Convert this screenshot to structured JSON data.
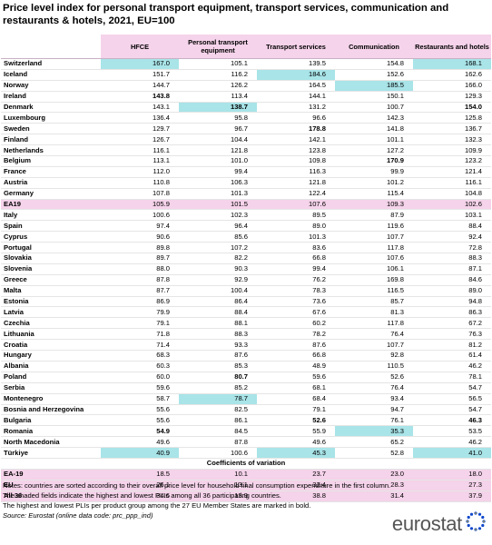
{
  "title": "Price level index for personal transport equipment, transport services, communication and restaurants & hotels, 2021, EU=100",
  "columns": [
    "HFCE",
    "Personal transport equipment",
    "Transport services",
    "Communication",
    "Restaurants and hotels"
  ],
  "highlight_color": "#a8e4e8",
  "section_color": "#f5d3ea",
  "rows": [
    {
      "country": "Switzerland",
      "values": [
        "167.0",
        "105.1",
        "139.5",
        "154.8",
        "168.1"
      ],
      "highlight": [
        0,
        4
      ],
      "bold": []
    },
    {
      "country": "Iceland",
      "values": [
        "151.7",
        "116.2",
        "184.6",
        "152.6",
        "162.6"
      ],
      "highlight": [
        2
      ],
      "bold": []
    },
    {
      "country": "Norway",
      "values": [
        "144.7",
        "126.2",
        "164.5",
        "185.5",
        "166.0"
      ],
      "highlight": [
        3
      ],
      "bold": []
    },
    {
      "country": "Ireland",
      "values": [
        "143.8",
        "113.4",
        "144.1",
        "150.1",
        "129.3"
      ],
      "highlight": [],
      "bold": [
        0
      ]
    },
    {
      "country": "Denmark",
      "values": [
        "143.1",
        "138.7",
        "131.2",
        "100.7",
        "154.0"
      ],
      "highlight": [
        1
      ],
      "bold": [
        1,
        4
      ]
    },
    {
      "country": "Luxembourg",
      "values": [
        "136.4",
        "95.8",
        "96.6",
        "142.3",
        "125.8"
      ],
      "highlight": [],
      "bold": []
    },
    {
      "country": "Sweden",
      "values": [
        "129.7",
        "96.7",
        "178.8",
        "141.8",
        "136.7"
      ],
      "highlight": [],
      "bold": [
        2
      ]
    },
    {
      "country": "Finland",
      "values": [
        "126.7",
        "104.4",
        "142.1",
        "101.1",
        "132.3"
      ],
      "highlight": [],
      "bold": []
    },
    {
      "country": "Netherlands",
      "values": [
        "116.1",
        "121.8",
        "123.8",
        "127.2",
        "109.9"
      ],
      "highlight": [],
      "bold": []
    },
    {
      "country": "Belgium",
      "values": [
        "113.1",
        "101.0",
        "109.8",
        "170.9",
        "123.2"
      ],
      "highlight": [],
      "bold": [
        3
      ]
    },
    {
      "country": "France",
      "values": [
        "112.0",
        "99.4",
        "116.3",
        "99.9",
        "121.4"
      ],
      "highlight": [],
      "bold": []
    },
    {
      "country": "Austria",
      "values": [
        "110.8",
        "106.3",
        "121.8",
        "101.2",
        "116.1"
      ],
      "highlight": [],
      "bold": []
    },
    {
      "country": "Germany",
      "values": [
        "107.8",
        "101.3",
        "122.4",
        "115.4",
        "104.8"
      ],
      "highlight": [],
      "bold": []
    },
    {
      "country": "EA19",
      "values": [
        "105.9",
        "101.5",
        "107.6",
        "109.3",
        "102.6"
      ],
      "highlight": [],
      "bold": [],
      "ea": true
    },
    {
      "country": "Italy",
      "values": [
        "100.6",
        "102.3",
        "89.5",
        "87.9",
        "103.1"
      ],
      "highlight": [],
      "bold": []
    },
    {
      "country": "Spain",
      "values": [
        "97.4",
        "96.4",
        "89.0",
        "119.6",
        "88.4"
      ],
      "highlight": [],
      "bold": []
    },
    {
      "country": "Cyprus",
      "values": [
        "90.6",
        "85.6",
        "101.3",
        "107.7",
        "92.4"
      ],
      "highlight": [],
      "bold": []
    },
    {
      "country": "Portugal",
      "values": [
        "89.8",
        "107.2",
        "83.6",
        "117.8",
        "72.8"
      ],
      "highlight": [],
      "bold": []
    },
    {
      "country": "Slovakia",
      "values": [
        "89.7",
        "82.2",
        "66.8",
        "107.6",
        "88.3"
      ],
      "highlight": [],
      "bold": []
    },
    {
      "country": "Slovenia",
      "values": [
        "88.0",
        "90.3",
        "99.4",
        "106.1",
        "87.1"
      ],
      "highlight": [],
      "bold": []
    },
    {
      "country": "Greece",
      "values": [
        "87.8",
        "92.9",
        "76.2",
        "169.8",
        "84.6"
      ],
      "highlight": [],
      "bold": []
    },
    {
      "country": "Malta",
      "values": [
        "87.7",
        "100.4",
        "78.3",
        "116.5",
        "89.0"
      ],
      "highlight": [],
      "bold": []
    },
    {
      "country": "Estonia",
      "values": [
        "86.9",
        "86.4",
        "73.6",
        "85.7",
        "94.8"
      ],
      "highlight": [],
      "bold": []
    },
    {
      "country": "Latvia",
      "values": [
        "79.9",
        "88.4",
        "67.6",
        "81.3",
        "86.3"
      ],
      "highlight": [],
      "bold": []
    },
    {
      "country": "Czechia",
      "values": [
        "79.1",
        "88.1",
        "60.2",
        "117.8",
        "67.2"
      ],
      "highlight": [],
      "bold": []
    },
    {
      "country": "Lithuania",
      "values": [
        "71.8",
        "88.3",
        "78.2",
        "76.4",
        "76.3"
      ],
      "highlight": [],
      "bold": []
    },
    {
      "country": "Croatia",
      "values": [
        "71.4",
        "93.3",
        "87.6",
        "107.7",
        "81.2"
      ],
      "highlight": [],
      "bold": []
    },
    {
      "country": "Hungary",
      "values": [
        "68.3",
        "87.6",
        "66.8",
        "92.8",
        "61.4"
      ],
      "highlight": [],
      "bold": []
    },
    {
      "country": "Albania",
      "values": [
        "60.3",
        "85.3",
        "48.9",
        "110.5",
        "46.2"
      ],
      "highlight": [],
      "bold": []
    },
    {
      "country": "Poland",
      "values": [
        "60.0",
        "80.7",
        "59.6",
        "52.6",
        "78.1"
      ],
      "highlight": [],
      "bold": [
        1
      ]
    },
    {
      "country": "Serbia",
      "values": [
        "59.6",
        "85.2",
        "68.1",
        "76.4",
        "54.7"
      ],
      "highlight": [],
      "bold": []
    },
    {
      "country": "Montenegro",
      "values": [
        "58.7",
        "78.7",
        "68.4",
        "93.4",
        "56.5"
      ],
      "highlight": [
        1
      ],
      "bold": []
    },
    {
      "country": "Bosnia and Herzegovina",
      "values": [
        "55.6",
        "82.5",
        "79.1",
        "94.7",
        "54.7"
      ],
      "highlight": [],
      "bold": []
    },
    {
      "country": "Bulgaria",
      "values": [
        "55.6",
        "86.1",
        "52.6",
        "76.1",
        "46.3"
      ],
      "highlight": [],
      "bold": [
        2,
        4
      ]
    },
    {
      "country": "Romania",
      "values": [
        "54.9",
        "84.5",
        "55.9",
        "35.3",
        "53.5"
      ],
      "highlight": [
        3
      ],
      "bold": [
        0
      ]
    },
    {
      "country": "North Macedonia",
      "values": [
        "49.6",
        "87.8",
        "49.6",
        "65.2",
        "46.2"
      ],
      "highlight": [],
      "bold": []
    },
    {
      "country": "Türkiye",
      "values": [
        "40.9",
        "100.6",
        "45.3",
        "52.8",
        "41.0"
      ],
      "highlight": [
        0,
        2,
        4
      ],
      "bold": []
    }
  ],
  "coefficients_title": "Coefficients of variation",
  "coefficients": [
    {
      "label": "EA-19",
      "values": [
        "18.5",
        "10.1",
        "23.7",
        "23.0",
        "18.0"
      ]
    },
    {
      "label": "EU",
      "values": [
        "26.1",
        "13.1",
        "32.4",
        "28.3",
        "27.3"
      ]
    },
    {
      "label": "All 36",
      "values": [
        "34.6",
        "13.9",
        "38.8",
        "31.4",
        "37.9"
      ]
    }
  ],
  "notes": [
    "Notes: countries are sorted according to their overall price level for household final consumption expenditure in the first column.",
    "The shaded fields indicate the highest and lowest PLIs among all 36 participating countries.",
    "The highest and lowest PLIs per product group among the 27 EU Member States are marked in bold."
  ],
  "source": "Source: Eurostat (online data code: prc_ppp_ind)",
  "logo_text": "eurostat",
  "logo_icon": "eu-stars-icon"
}
